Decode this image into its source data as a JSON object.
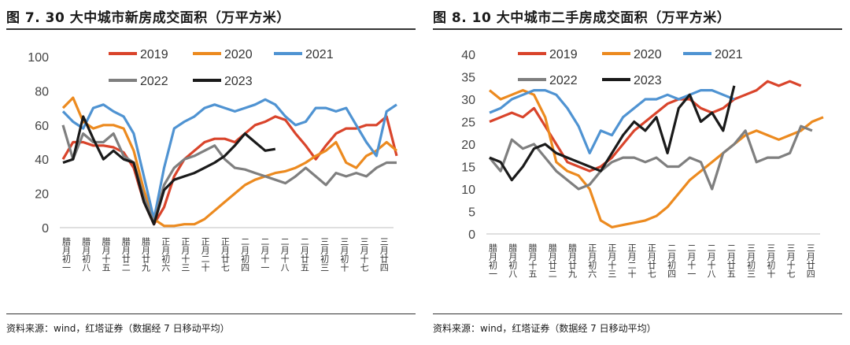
{
  "chart_data": [
    {
      "type": "line",
      "title": "图 7. 30 大中城市新房成交面积（万平方米）",
      "source": "资料来源：wind，红塔证券（数据经 7 日移动平均）",
      "xlabel": "",
      "ylabel": "",
      "ylim": [
        0,
        100
      ],
      "yticks": [
        0,
        20,
        40,
        60,
        80,
        100
      ],
      "categories": [
        "腊月初一",
        "腊月初八",
        "腊月十五",
        "腊月廿二",
        "腊月廿九",
        "正月初六",
        "正月十三",
        "正月二十",
        "正月廿七",
        "二月初四",
        "二月十一",
        "二月十八",
        "二月廿五",
        "三月初三",
        "三月初十",
        "三月十七",
        "三月廿四"
      ],
      "grid": false,
      "legend": "top",
      "series": [
        {
          "name": "2019",
          "color": "#d9442b",
          "values": [
            40,
            50,
            50,
            48,
            48,
            47,
            44,
            35,
            15,
            2,
            12,
            30,
            40,
            45,
            50,
            52,
            52,
            50,
            55,
            60,
            62,
            65,
            63,
            55,
            48,
            40,
            48,
            55,
            58,
            58,
            60,
            60,
            65,
            42
          ]
        },
        {
          "name": "2020",
          "color": "#ec8a1f",
          "values": [
            70,
            76,
            62,
            58,
            60,
            60,
            58,
            45,
            22,
            5,
            1,
            1,
            2,
            2,
            5,
            10,
            15,
            20,
            25,
            28,
            30,
            32,
            33,
            35,
            38,
            42,
            45,
            50,
            38,
            35,
            42,
            45,
            50,
            45
          ]
        },
        {
          "name": "2021",
          "color": "#4f93d2",
          "values": [
            68,
            62,
            58,
            70,
            72,
            68,
            65,
            55,
            30,
            5,
            35,
            58,
            62,
            65,
            70,
            72,
            70,
            68,
            70,
            72,
            75,
            72,
            65,
            60,
            62,
            70,
            70,
            68,
            70,
            60,
            50,
            42,
            68,
            72
          ]
        },
        {
          "name": "2022",
          "color": "#7f7f7f",
          "values": [
            60,
            40,
            55,
            50,
            50,
            55,
            42,
            38,
            18,
            3,
            25,
            35,
            40,
            42,
            45,
            48,
            40,
            35,
            34,
            32,
            30,
            28,
            26,
            30,
            35,
            30,
            25,
            32,
            30,
            32,
            30,
            35,
            38,
            38
          ]
        },
        {
          "name": "2023",
          "color": "#1a1a1a",
          "values": [
            38,
            40,
            65,
            52,
            40,
            45,
            40,
            38,
            15,
            2,
            22,
            28,
            30,
            32,
            35,
            38,
            42,
            48,
            55,
            50,
            45,
            46
          ]
        }
      ]
    },
    {
      "type": "line",
      "title": "图 8. 10 大中城市二手房成交面积（万平方米）",
      "source": "资料来源：wind，红塔证券（数据经 7 日移动平均）",
      "xlabel": "",
      "ylabel": "",
      "ylim": [
        0,
        40
      ],
      "yticks": [
        0,
        5,
        10,
        15,
        20,
        25,
        30,
        35,
        40
      ],
      "categories": [
        "腊月初一",
        "腊月初八",
        "腊月十五",
        "腊月廿二",
        "腊月廿九",
        "正月初六",
        "正月十三",
        "正月二十",
        "正月廿七",
        "二月初四",
        "二月十一",
        "二月十八",
        "二月廿五",
        "三月初三",
        "三月初十",
        "三月十七",
        "三月廿四"
      ],
      "grid": false,
      "legend": "top",
      "series": [
        {
          "name": "2019",
          "color": "#d9442b",
          "values": [
            25,
            26,
            27,
            26,
            28,
            24,
            20,
            16,
            15,
            14,
            15,
            17,
            20,
            23,
            25,
            27,
            29,
            30,
            30,
            28,
            27,
            28,
            30,
            31,
            32,
            34,
            33,
            34,
            33
          ]
        },
        {
          "name": "2020",
          "color": "#ec8a1f",
          "values": [
            32,
            30,
            31,
            32,
            31,
            26,
            16,
            14,
            13,
            10,
            3,
            1.5,
            2,
            2.5,
            3,
            4,
            6,
            9,
            12,
            14,
            16,
            18,
            20,
            22,
            23,
            22,
            21,
            22,
            23,
            25,
            26
          ]
        },
        {
          "name": "2021",
          "color": "#4f93d2",
          "values": [
            27,
            28,
            30,
            31,
            32,
            32,
            31,
            28,
            24,
            18,
            23,
            22,
            26,
            28,
            30,
            30,
            31,
            30,
            31,
            32,
            32,
            31,
            30
          ]
        },
        {
          "name": "2022",
          "color": "#7f7f7f",
          "values": [
            17,
            14,
            21,
            19,
            20,
            17,
            14,
            12,
            10,
            11,
            14,
            16,
            17,
            17,
            16,
            17,
            15,
            15,
            17,
            16,
            10,
            18,
            20,
            23,
            16,
            17,
            17,
            18,
            24,
            23
          ]
        },
        {
          "name": "2023",
          "color": "#1a1a1a",
          "values": [
            17,
            16,
            12,
            15,
            19,
            20,
            18,
            17,
            16,
            15,
            14,
            18,
            22,
            25,
            23,
            26,
            18,
            28,
            31,
            25,
            27,
            23,
            33
          ]
        }
      ]
    }
  ]
}
